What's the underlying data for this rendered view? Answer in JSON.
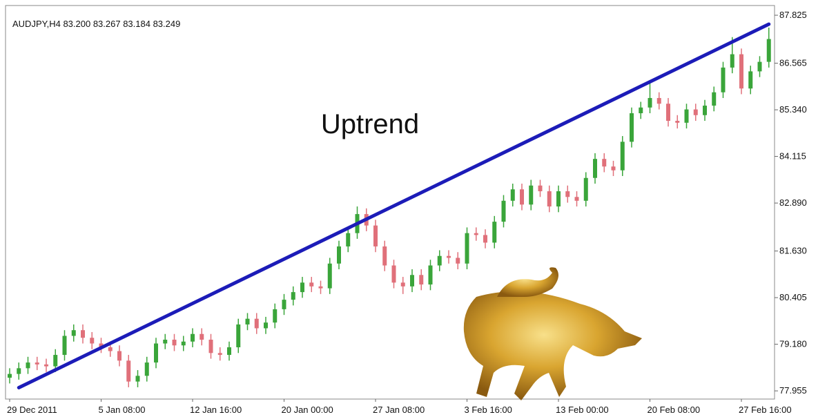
{
  "chart_data": {
    "type": "candlestick",
    "header": "AUDJPY,H4  83.200 83.267 83.184 83.249",
    "annotation": "Uptrend",
    "categories": [
      "29 Dec 2011",
      null,
      null,
      null,
      null,
      null,
      null,
      null,
      null,
      null,
      "5 Jan 08:00",
      null,
      null,
      null,
      null,
      null,
      null,
      null,
      null,
      null,
      "12 Jan 16:00",
      null,
      null,
      null,
      null,
      null,
      null,
      null,
      null,
      null,
      "20 Jan 00:00",
      null,
      null,
      null,
      null,
      null,
      null,
      null,
      null,
      null,
      "27 Jan 08:00",
      null,
      null,
      null,
      null,
      null,
      null,
      null,
      null,
      null,
      "3 Feb 16:00",
      null,
      null,
      null,
      null,
      null,
      null,
      null,
      null,
      null,
      "13 Feb 00:00",
      null,
      null,
      null,
      null,
      null,
      null,
      null,
      null,
      null,
      "20 Feb 08:00",
      null,
      null,
      null,
      null,
      null,
      null,
      null,
      null,
      null,
      "27 Feb 16:00",
      null,
      null,
      null
    ],
    "open": [
      78.3,
      78.4,
      78.55,
      78.7,
      78.65,
      78.6,
      78.9,
      79.4,
      79.55,
      79.35,
      79.2,
      79.1,
      79.0,
      78.75,
      78.2,
      78.35,
      78.7,
      79.2,
      79.3,
      79.15,
      79.25,
      79.45,
      79.3,
      78.95,
      78.9,
      79.1,
      79.7,
      79.85,
      79.6,
      79.75,
      80.1,
      80.35,
      80.55,
      80.8,
      80.7,
      80.65,
      81.3,
      81.75,
      82.1,
      82.6,
      82.3,
      81.75,
      81.25,
      80.8,
      80.7,
      81.0,
      80.75,
      81.25,
      81.5,
      81.45,
      81.3,
      82.1,
      82.05,
      81.85,
      82.4,
      82.95,
      83.25,
      82.85,
      83.35,
      83.2,
      82.8,
      83.2,
      83.05,
      82.95,
      83.55,
      84.05,
      83.85,
      83.75,
      84.5,
      85.25,
      85.4,
      85.65,
      85.5,
      85.05,
      85.0,
      85.35,
      85.2,
      85.45,
      85.8,
      86.45,
      86.8,
      85.9,
      86.35,
      86.6
    ],
    "high": [
      78.55,
      78.7,
      78.85,
      78.85,
      78.8,
      79.05,
      79.55,
      79.7,
      79.7,
      79.5,
      79.35,
      79.25,
      79.15,
      78.9,
      78.5,
      78.85,
      79.35,
      79.45,
      79.45,
      79.4,
      79.6,
      79.6,
      79.45,
      79.1,
      79.25,
      79.85,
      80.0,
      80.0,
      79.9,
      80.25,
      80.5,
      80.7,
      80.95,
      80.95,
      80.85,
      81.45,
      81.9,
      82.25,
      82.8,
      82.75,
      82.45,
      81.9,
      81.4,
      80.95,
      81.15,
      81.15,
      81.4,
      81.65,
      81.65,
      81.6,
      82.25,
      82.25,
      82.2,
      82.55,
      83.1,
      83.4,
      83.4,
      83.5,
      83.5,
      83.35,
      83.35,
      83.35,
      83.2,
      83.7,
      84.2,
      84.2,
      84.0,
      84.65,
      85.4,
      85.55,
      86.1,
      85.8,
      85.65,
      85.2,
      85.5,
      85.5,
      85.6,
      85.95,
      86.6,
      87.25,
      86.95,
      86.5,
      86.75,
      87.5
    ],
    "low": [
      78.15,
      78.25,
      78.4,
      78.5,
      78.45,
      78.45,
      78.75,
      79.25,
      79.2,
      79.05,
      78.95,
      78.85,
      78.6,
      78.05,
      78.05,
      78.2,
      78.55,
      79.05,
      79.0,
      79.0,
      79.1,
      79.15,
      78.8,
      78.75,
      78.75,
      78.95,
      79.55,
      79.45,
      79.45,
      79.6,
      79.95,
      80.2,
      80.4,
      80.55,
      80.5,
      80.5,
      81.15,
      81.6,
      81.95,
      82.15,
      81.6,
      81.1,
      80.65,
      80.5,
      80.55,
      80.6,
      80.6,
      81.1,
      81.3,
      81.15,
      81.15,
      81.9,
      81.7,
      81.7,
      82.25,
      82.8,
      82.7,
      82.7,
      83.05,
      82.65,
      82.65,
      82.9,
      82.8,
      82.8,
      83.4,
      83.7,
      83.6,
      83.6,
      84.35,
      85.1,
      85.25,
      85.35,
      84.9,
      84.85,
      84.85,
      85.05,
      85.05,
      85.3,
      85.65,
      86.3,
      85.75,
      85.75,
      86.2,
      86.45
    ],
    "close": [
      78.4,
      78.55,
      78.7,
      78.65,
      78.6,
      78.9,
      79.4,
      79.55,
      79.35,
      79.2,
      79.1,
      79.0,
      78.75,
      78.2,
      78.35,
      78.7,
      79.2,
      79.3,
      79.15,
      79.25,
      79.45,
      79.3,
      78.95,
      78.9,
      79.1,
      79.7,
      79.85,
      79.6,
      79.75,
      80.1,
      80.35,
      80.55,
      80.8,
      80.7,
      80.65,
      81.3,
      81.75,
      82.1,
      82.6,
      82.3,
      81.75,
      81.25,
      80.8,
      80.7,
      81.0,
      80.75,
      81.25,
      81.5,
      81.45,
      81.3,
      82.1,
      82.05,
      81.85,
      82.4,
      82.95,
      83.25,
      82.85,
      83.35,
      83.2,
      82.8,
      83.2,
      83.05,
      82.95,
      83.55,
      84.05,
      83.85,
      83.75,
      84.5,
      85.25,
      85.4,
      85.65,
      85.5,
      85.05,
      85.0,
      85.35,
      85.2,
      85.45,
      85.8,
      86.45,
      86.8,
      85.9,
      86.35,
      86.6,
      87.2
    ],
    "up_color": "#3aa53a",
    "down_color": "#e0707a",
    "trendline": {
      "color": "#1c1cb8",
      "from": [
        1,
        78.04
      ],
      "to": [
        83,
        87.59
      ]
    },
    "ylim": [
      77.74,
      88.08
    ],
    "yticks": [
      77.955,
      {
        "value": 79.18,
        "label": "79.180"
      },
      80.405,
      {
        "value": 81.63,
        "label": "81.630"
      },
      {
        "value": 82.89,
        "label": "82.890"
      },
      84.115,
      {
        "value": 85.34,
        "label": "85.340"
      },
      86.565,
      87.825
    ]
  }
}
